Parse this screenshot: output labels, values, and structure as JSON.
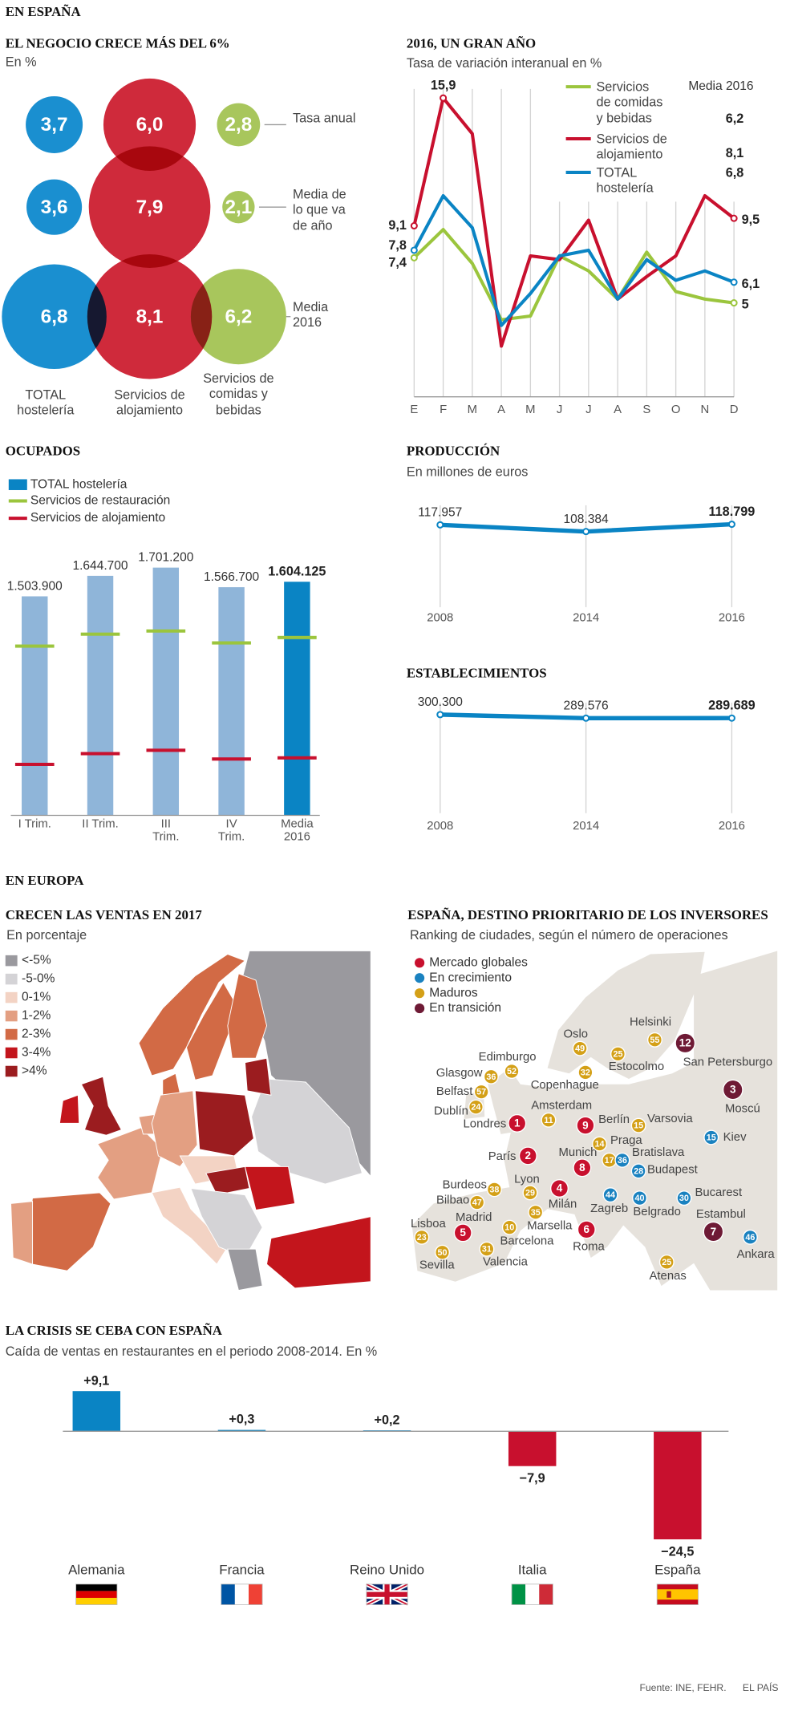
{
  "sections": [
    "EN ESPAÑA",
    "EN EUROPA"
  ],
  "source": "Fuente: INE, FEHR.",
  "publisher": "EL PAÍS",
  "chart_data": [
    {
      "type": "bubble",
      "title": "EL NEGOCIO CRECE MÁS DEL 6%",
      "subtitle": "En %",
      "categories": [
        "Tasa anual",
        "Media de lo que va de año",
        "Media 2016"
      ],
      "series": [
        {
          "name": "TOTAL hostelería",
          "color": "#1a8fd0",
          "values": [
            3.7,
            3.6,
            6.8
          ],
          "value_labels": [
            "3,7",
            "3,6",
            "6,8"
          ]
        },
        {
          "name": "Servicios de alojamiento",
          "color": "#cf2a3b",
          "values": [
            6.0,
            7.9,
            8.1
          ],
          "value_labels": [
            "6,0",
            "7,9",
            "8,1"
          ]
        },
        {
          "name": "Servicios de comidas y bebidas",
          "color": "#a8c65c",
          "values": [
            2.8,
            2.1,
            6.2
          ],
          "value_labels": [
            "2,8",
            "2,1",
            "6,2"
          ]
        }
      ]
    },
    {
      "type": "line",
      "title": "2016, UN GRAN AÑO",
      "subtitle": "Tasa de variación interanual en %",
      "categories": [
        "E",
        "F",
        "M",
        "A",
        "M",
        "J",
        "J",
        "A",
        "S",
        "O",
        "N",
        "D"
      ],
      "ylim": [
        0,
        16.5
      ],
      "legend_title": "Media 2016",
      "series": [
        {
          "name": "Servicios de comidas y bebidas",
          "color": "#9bc53d",
          "values": [
            7.4,
            8.9,
            7.1,
            4.1,
            4.3,
            7.5,
            6.7,
            5.2,
            7.7,
            5.6,
            5.2,
            5
          ],
          "value_labels": [
            "7,4",
            null,
            null,
            null,
            null,
            null,
            null,
            null,
            null,
            null,
            null,
            "5"
          ],
          "average": {
            "value": 6.2,
            "label": "6,2"
          }
        },
        {
          "name": "Servicios de alojamiento",
          "color": "#c8102e",
          "values": [
            9.1,
            15.9,
            14,
            2.7,
            7.5,
            7.3,
            9.4,
            5.2,
            6.4,
            7.5,
            10.7,
            9.5
          ],
          "value_labels": [
            "9,1",
            "15,9",
            null,
            null,
            null,
            null,
            null,
            null,
            null,
            null,
            null,
            "9,5"
          ],
          "average": {
            "value": 8.1,
            "label": "8,1"
          }
        },
        {
          "name": "TOTAL hostelería",
          "color": "#0a84c4",
          "values": [
            7.8,
            10.7,
            9.0,
            3.8,
            5.5,
            7.5,
            7.8,
            5.2,
            7.3,
            6.2,
            6.7,
            6.1
          ],
          "value_labels": [
            "7,8",
            null,
            null,
            null,
            null,
            null,
            null,
            null,
            null,
            null,
            null,
            "6,1"
          ],
          "average": {
            "value": 6.8,
            "label": "6,8"
          }
        }
      ]
    },
    {
      "type": "bar",
      "title": "OCUPADOS",
      "categories": [
        "I Trim.",
        "II Trim.",
        "III Trim.",
        "IV Trim.",
        "Media 2016"
      ],
      "ylim": [
        0,
        1760000
      ],
      "highlight": 4,
      "series": [
        {
          "name": "TOTAL hostelería",
          "style": "bar",
          "color": "#0a84c4",
          "colors": [
            "#8fb5d9",
            "#8fb5d9",
            "#8fb5d9",
            "#8fb5d9",
            "#0a84c4"
          ],
          "values": [
            1503900,
            1644700,
            1701200,
            1566700,
            1604125
          ],
          "value_labels": [
            "1.503.900",
            "1.644.700",
            "1.701.200",
            "1.566.700",
            "1.604.125"
          ]
        },
        {
          "name": "Servicios de restauración",
          "style": "marker",
          "color": "#9bc53d",
          "values": [
            1162000,
            1244000,
            1266000,
            1184000,
            1221000
          ]
        },
        {
          "name": "Servicios de alojamiento",
          "style": "marker",
          "color": "#c8102e",
          "values": [
            350000,
            424000,
            447000,
            387000,
            395000
          ]
        }
      ]
    },
    {
      "type": "line",
      "title": "PRODUCCIÓN",
      "subtitle": "En millones de euros",
      "categories": [
        "2008",
        "2014",
        "2016"
      ],
      "ylim": [
        0,
        160000
      ],
      "highlight": 2,
      "series": [
        {
          "color": "#0a84c4",
          "values": [
            117957,
            108384,
            118799
          ],
          "value_labels": [
            "117.957",
            "108.384",
            "118.799"
          ]
        }
      ]
    },
    {
      "type": "line",
      "title": "ESTABLECIMIENTOS",
      "categories": [
        "2008",
        "2014",
        "2016"
      ],
      "ylim": [
        0,
        360000
      ],
      "highlight": 2,
      "series": [
        {
          "color": "#0a84c4",
          "values": [
            300300,
            289576,
            289689
          ],
          "value_labels": [
            "300.300",
            "289.576",
            "289.689"
          ]
        }
      ]
    },
    {
      "type": "choropleth",
      "title": "CRECEN LAS VENTAS EN 2017",
      "subtitle": "En porcentaje",
      "legend": [
        {
          "label": "<-5%",
          "color": "#9a999e"
        },
        {
          "label": "-5-0%",
          "color": "#d4d3d6"
        },
        {
          "label": "0-1%",
          "color": "#f3d3c4"
        },
        {
          "label": "1-2%",
          "color": "#e39f82"
        },
        {
          "label": "2-3%",
          "color": "#d26a45"
        },
        {
          "label": "3-4%",
          "color": "#c3151c"
        },
        {
          "label": ">4%",
          "color": "#9b1c1f"
        }
      ]
    },
    {
      "type": "map",
      "title": "ESPAÑA, DESTINO PRIORITARIO DE LOS INVERSORES",
      "subtitle": "Ranking de ciudades, según el número de operaciones",
      "groups": [
        {
          "name": "Mercado globales",
          "color": "#c8102e"
        },
        {
          "name": "En crecimiento",
          "color": "#1a82c0"
        },
        {
          "name": "Maduros",
          "color": "#d4a017"
        },
        {
          "name": "En transición",
          "color": "#6e1a35"
        }
      ],
      "cities": [
        {
          "name": "Londres",
          "rank": 1,
          "group": 0
        },
        {
          "name": "París",
          "rank": 2,
          "group": 0
        },
        {
          "name": "Moscú",
          "rank": 3,
          "group": 3
        },
        {
          "name": "Milán",
          "rank": 4,
          "group": 0
        },
        {
          "name": "Madrid",
          "rank": 5,
          "group": 0
        },
        {
          "name": "Roma",
          "rank": 6,
          "group": 0
        },
        {
          "name": "Estambul",
          "rank": 7,
          "group": 3
        },
        {
          "name": "Munich",
          "rank": 8,
          "group": 0
        },
        {
          "name": "Berlín",
          "rank": 9,
          "group": 0
        },
        {
          "name": "Barcelona",
          "rank": 10,
          "group": 2
        },
        {
          "name": "Amsterdam",
          "rank": 11,
          "group": 2
        },
        {
          "name": "San Petersburgo",
          "rank": 12,
          "group": 3
        },
        {
          "name": "Praga",
          "rank": 14,
          "group": 2
        },
        {
          "name": "Varsovia",
          "rank": 15,
          "group": 2
        },
        {
          "name": "Kiev",
          "rank": 15,
          "group": 1
        },
        {
          "name": null,
          "rank": 17,
          "group": 2
        },
        {
          "name": "Bratislava",
          "rank": 36,
          "group": 1
        },
        {
          "name": "Budapest",
          "rank": 28,
          "group": 1
        },
        {
          "name": "Bilbao",
          "rank": 47,
          "group": 2
        },
        {
          "name": "Burdeos",
          "rank": 38,
          "group": 2
        },
        {
          "name": "Lyon",
          "rank": 29,
          "group": 2
        },
        {
          "name": "Marsella",
          "rank": 35,
          "group": 2
        },
        {
          "name": "Lisboa",
          "rank": 23,
          "group": 2
        },
        {
          "name": "Sevilla",
          "rank": 50,
          "group": 2
        },
        {
          "name": "Valencia",
          "rank": 31,
          "group": 2
        },
        {
          "name": "Zagreb",
          "rank": 44,
          "group": 1
        },
        {
          "name": "Belgrado",
          "rank": 40,
          "group": 1
        },
        {
          "name": "Bucarest",
          "rank": 30,
          "group": 1
        },
        {
          "name": "Ankara",
          "rank": 46,
          "group": 1
        },
        {
          "name": "Atenas",
          "rank": 25,
          "group": 2
        },
        {
          "name": "Edimburgo",
          "rank": 52,
          "group": 2
        },
        {
          "name": "Glasgow",
          "rank": 36,
          "group": 2
        },
        {
          "name": "Belfast",
          "rank": 57,
          "group": 2
        },
        {
          "name": "Dublín",
          "rank": 24,
          "group": 2
        },
        {
          "name": "Copenhague",
          "rank": 32,
          "group": 2
        },
        {
          "name": "Oslo",
          "rank": 49,
          "group": 2
        },
        {
          "name": "Estocolmo",
          "rank": 25,
          "group": 2
        },
        {
          "name": "Helsinki",
          "rank": 55,
          "group": 2
        }
      ]
    },
    {
      "type": "bar",
      "title": "LA CRISIS SE CEBA CON ESPAÑA",
      "subtitle": "Caída de ventas en restaurantes en el periodo 2008-2014. En %",
      "categories": [
        "Alemania",
        "Francia",
        "Reino Unido",
        "Italia",
        "España"
      ],
      "values": [
        9.1,
        0.3,
        0.2,
        -7.9,
        -24.5
      ],
      "value_labels": [
        "+9,1",
        "+0,3",
        "+0,2",
        "−7,9",
        "−24,5"
      ],
      "colors": [
        "#0a84c4",
        "#0a84c4",
        "#0a84c4",
        "#c8102e",
        "#c8102e"
      ],
      "ylim": [
        -26,
        10
      ]
    }
  ]
}
